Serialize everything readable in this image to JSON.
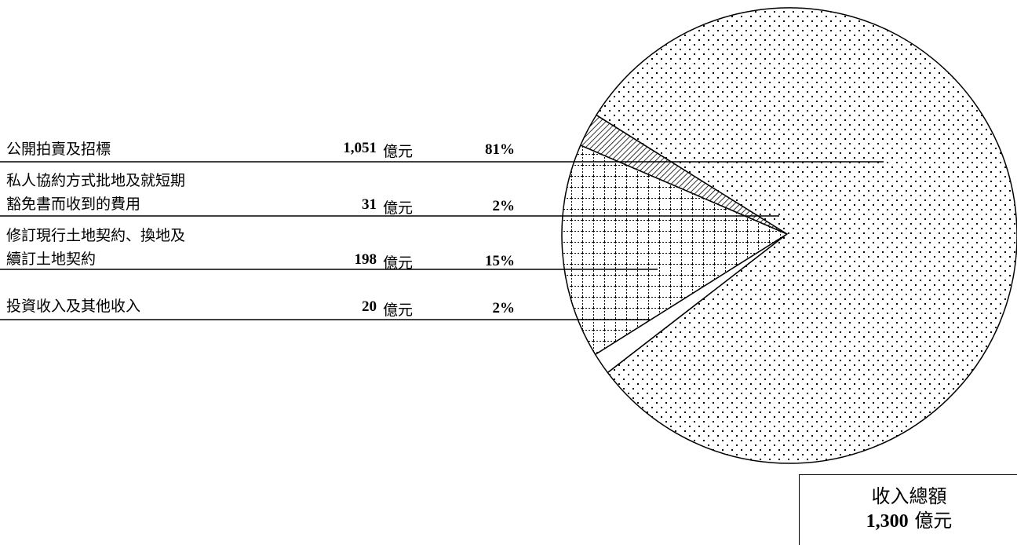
{
  "chart_data": {
    "type": "pie",
    "slices": [
      {
        "label": "公開拍賣及招標",
        "value": 1051,
        "unit": "億元",
        "percent": "81%",
        "pattern": "dots"
      },
      {
        "label": "私人協約方式批地及就短期豁免書而收到的費用",
        "value": 31,
        "unit": "億元",
        "percent": "2%",
        "pattern": "hatch"
      },
      {
        "label": "修訂現行土地契約、換地及續訂土地契約",
        "value": 198,
        "unit": "億元",
        "percent": "15%",
        "pattern": "grid"
      },
      {
        "label": "投資收入及其他收入",
        "value": 20,
        "unit": "億元",
        "percent": "2%",
        "pattern": "blank"
      }
    ],
    "total": {
      "title": "收入總額",
      "value": "1,300",
      "unit": "億元"
    }
  },
  "legend": {
    "rows": [
      {
        "lines": [
          "公開拍賣及招標"
        ],
        "value": "1,051",
        "unit": "億元",
        "percent": "81%"
      },
      {
        "lines": [
          "私人協約方式批地及就短期",
          "豁免書而收到的費用"
        ],
        "value": "31",
        "unit": "億元",
        "percent": "2%"
      },
      {
        "lines": [
          "修訂現行土地契約、換地及",
          "續訂土地契約"
        ],
        "value": "198",
        "unit": "億元",
        "percent": "15%"
      },
      {
        "lines": [
          "投資收入及其他收入"
        ],
        "value": "20",
        "unit": "億元",
        "percent": "2%"
      }
    ]
  }
}
